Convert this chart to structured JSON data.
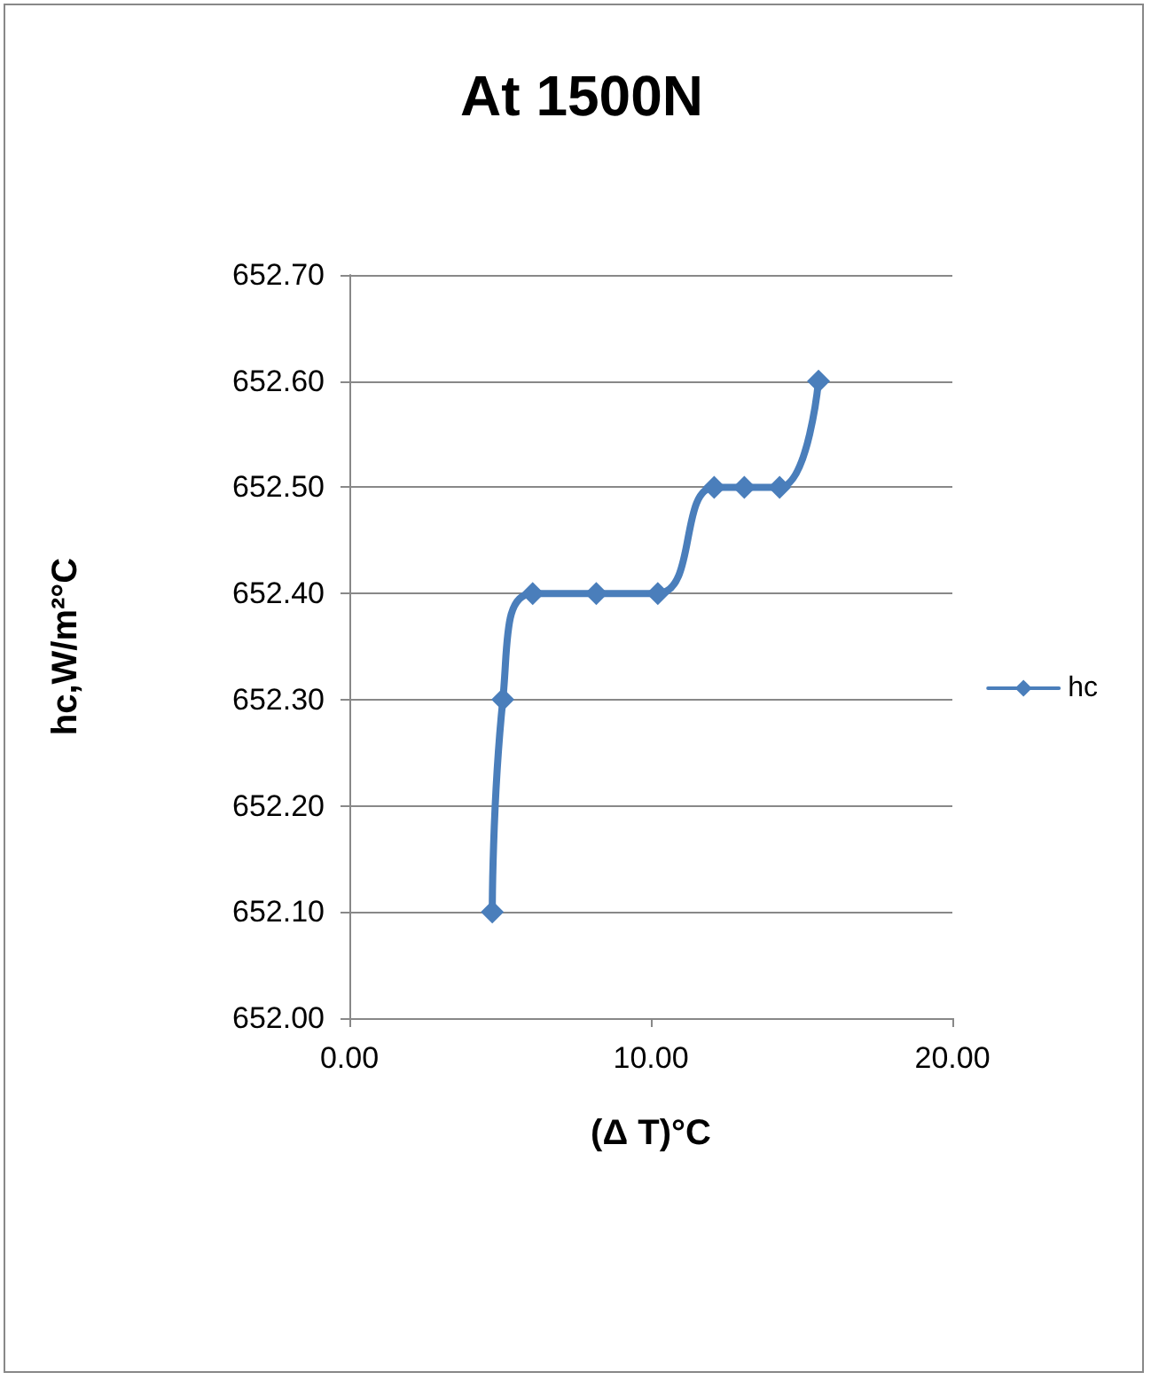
{
  "chart_data": {
    "type": "line",
    "title": "At 1500N",
    "xlabel": "(Δ T)°C",
    "ylabel": "hc,W/m²°C",
    "x": [
      4.74,
      5.09,
      6.08,
      8.19,
      10.23,
      12.1,
      13.1,
      14.27,
      15.56
    ],
    "series": [
      {
        "name": "hc",
        "color": "#4a7ebb",
        "values": [
          652.1,
          652.3,
          652.4,
          652.4,
          652.4,
          652.5,
          652.5,
          652.5,
          652.6
        ]
      }
    ],
    "xlim": [
      0,
      20
    ],
    "xticks": [
      {
        "value": 0,
        "label": "0.00"
      },
      {
        "value": 10,
        "label": "10.00"
      },
      {
        "value": 20,
        "label": "20.00"
      }
    ],
    "ylim": [
      652,
      652.7
    ],
    "yticks": [
      {
        "value": 652,
        "label": "652.00"
      },
      {
        "value": 652.1,
        "label": "652.10"
      },
      {
        "value": 652.2,
        "label": "652.20"
      },
      {
        "value": 652.3,
        "label": "652.30"
      },
      {
        "value": 652.4,
        "label": "652.40"
      },
      {
        "value": 652.5,
        "label": "652.50"
      },
      {
        "value": 652.6,
        "label": "652.60"
      },
      {
        "value": 652.7,
        "label": "652.70"
      }
    ],
    "grid": "y",
    "legend": "right",
    "marker": "diamond",
    "line_style": "solid"
  }
}
